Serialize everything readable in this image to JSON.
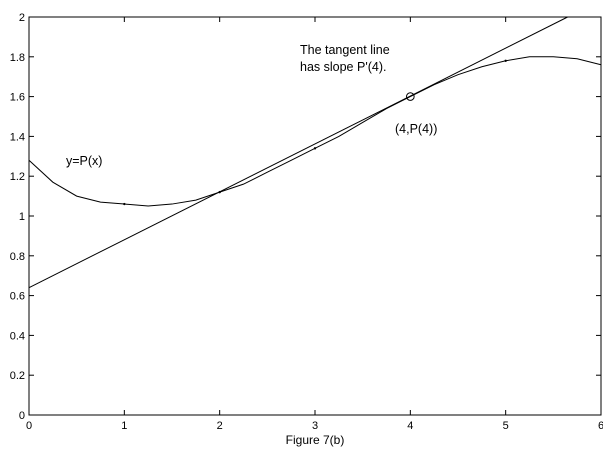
{
  "chart_data": {
    "type": "line",
    "xlabel": "Figure 7(b)",
    "xlim": [
      0,
      6
    ],
    "ylim": [
      0,
      2
    ],
    "xticks": [
      0,
      1,
      2,
      3,
      4,
      5,
      6
    ],
    "yticks": [
      0,
      0.2,
      0.4,
      0.6,
      0.8,
      1,
      1.2,
      1.4,
      1.6,
      1.8,
      2
    ],
    "xtick_labels": [
      "0",
      "1",
      "2",
      "3",
      "4",
      "5",
      "6"
    ],
    "ytick_labels": [
      "0",
      "0.2",
      "0.4",
      "0.6",
      "0.8",
      "1",
      "1.2",
      "1.4",
      "1.6",
      "1.8",
      "2"
    ],
    "grid": false,
    "series": [
      {
        "label": "y=P(x)",
        "x": [
          0,
          0.25,
          0.5,
          0.75,
          1,
          1.25,
          1.5,
          1.75,
          2,
          2.25,
          2.5,
          2.75,
          3,
          3.25,
          3.5,
          3.75,
          4,
          4.25,
          4.5,
          4.75,
          5,
          5.25,
          5.5,
          5.75,
          6
        ],
        "y": [
          1.28,
          1.17,
          1.1,
          1.07,
          1.06,
          1.05,
          1.06,
          1.08,
          1.12,
          1.16,
          1.22,
          1.28,
          1.34,
          1.4,
          1.47,
          1.54,
          1.6,
          1.66,
          1.71,
          1.75,
          1.78,
          1.8,
          1.8,
          1.79,
          1.76
        ]
      },
      {
        "label": "tangent",
        "x": [
          0,
          5.65
        ],
        "y": [
          0.64,
          2.0
        ]
      }
    ],
    "data_points": {
      "x": [
        1,
        2,
        3,
        5
      ],
      "y": [
        1.06,
        1.12,
        1.34,
        1.78
      ]
    },
    "marked_point": {
      "x": 4,
      "y": 1.6,
      "label": "(4,P(4))"
    },
    "annotations": {
      "tangent_line1": "The tangent line",
      "tangent_line2": "has slope P'(4)."
    }
  }
}
